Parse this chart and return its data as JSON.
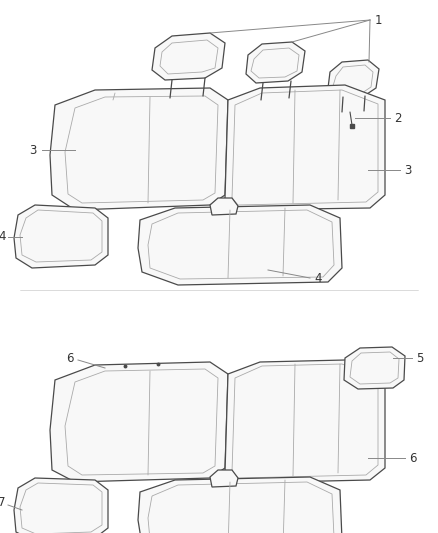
{
  "bg_color": "#ffffff",
  "line_color": "#4a4a4a",
  "inner_color": "#aaaaaa",
  "line_width": 0.9,
  "inner_lw": 0.6,
  "label_color": "#333333",
  "callout_color": "#888888",
  "fill_color": "#f8f8f8"
}
